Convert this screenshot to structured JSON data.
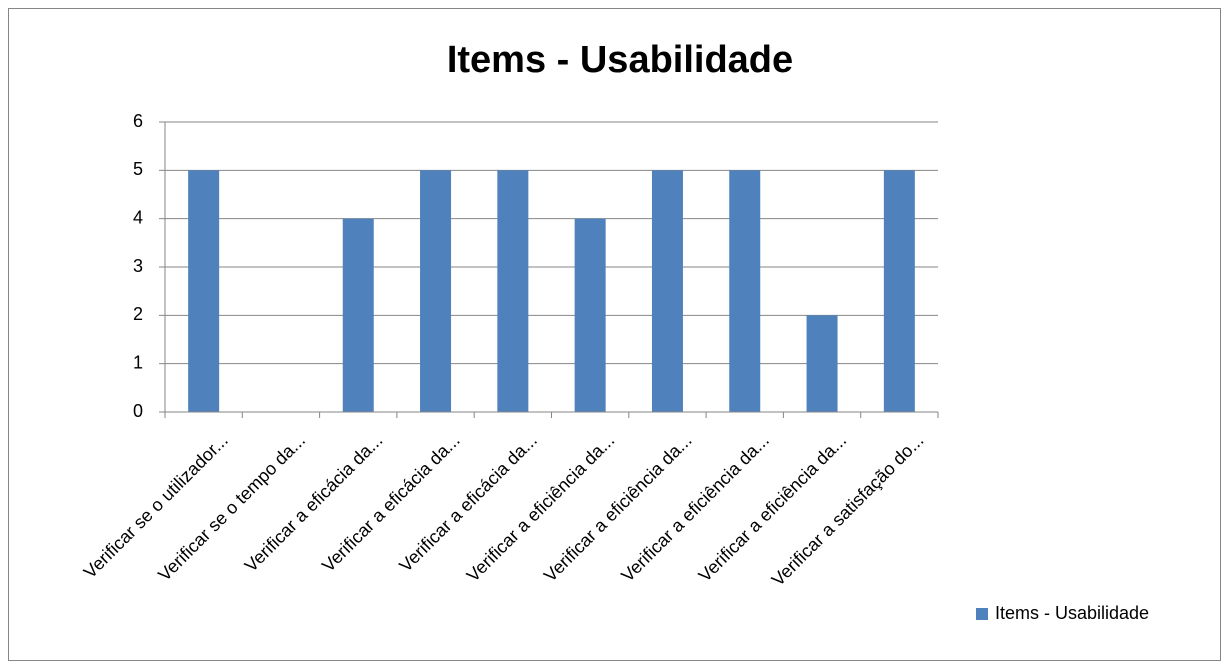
{
  "chart_data": {
    "type": "bar",
    "title": "Items - Usabilidade",
    "categories": [
      "Verificar se o utilizador...",
      "Verificar se o tempo da...",
      "Verificar a eficácia da...",
      "Verificar a eficácia da...",
      "Verificar a eficácia da...",
      "Verificar a eficiência da...",
      "Verificar a eficiência da...",
      "Verificar a eficiência da...",
      "Verificar a eficiência da...",
      "Verificar a satisfação do..."
    ],
    "series": [
      {
        "name": "Items - Usabilidade",
        "color": "#4f81bd",
        "values": [
          5,
          0,
          4,
          5,
          5,
          4,
          5,
          5,
          2,
          5
        ]
      }
    ],
    "ylim": [
      0,
      6
    ],
    "yticks": [
      0,
      1,
      2,
      3,
      4,
      5,
      6
    ],
    "grid": true,
    "legend": "right"
  }
}
